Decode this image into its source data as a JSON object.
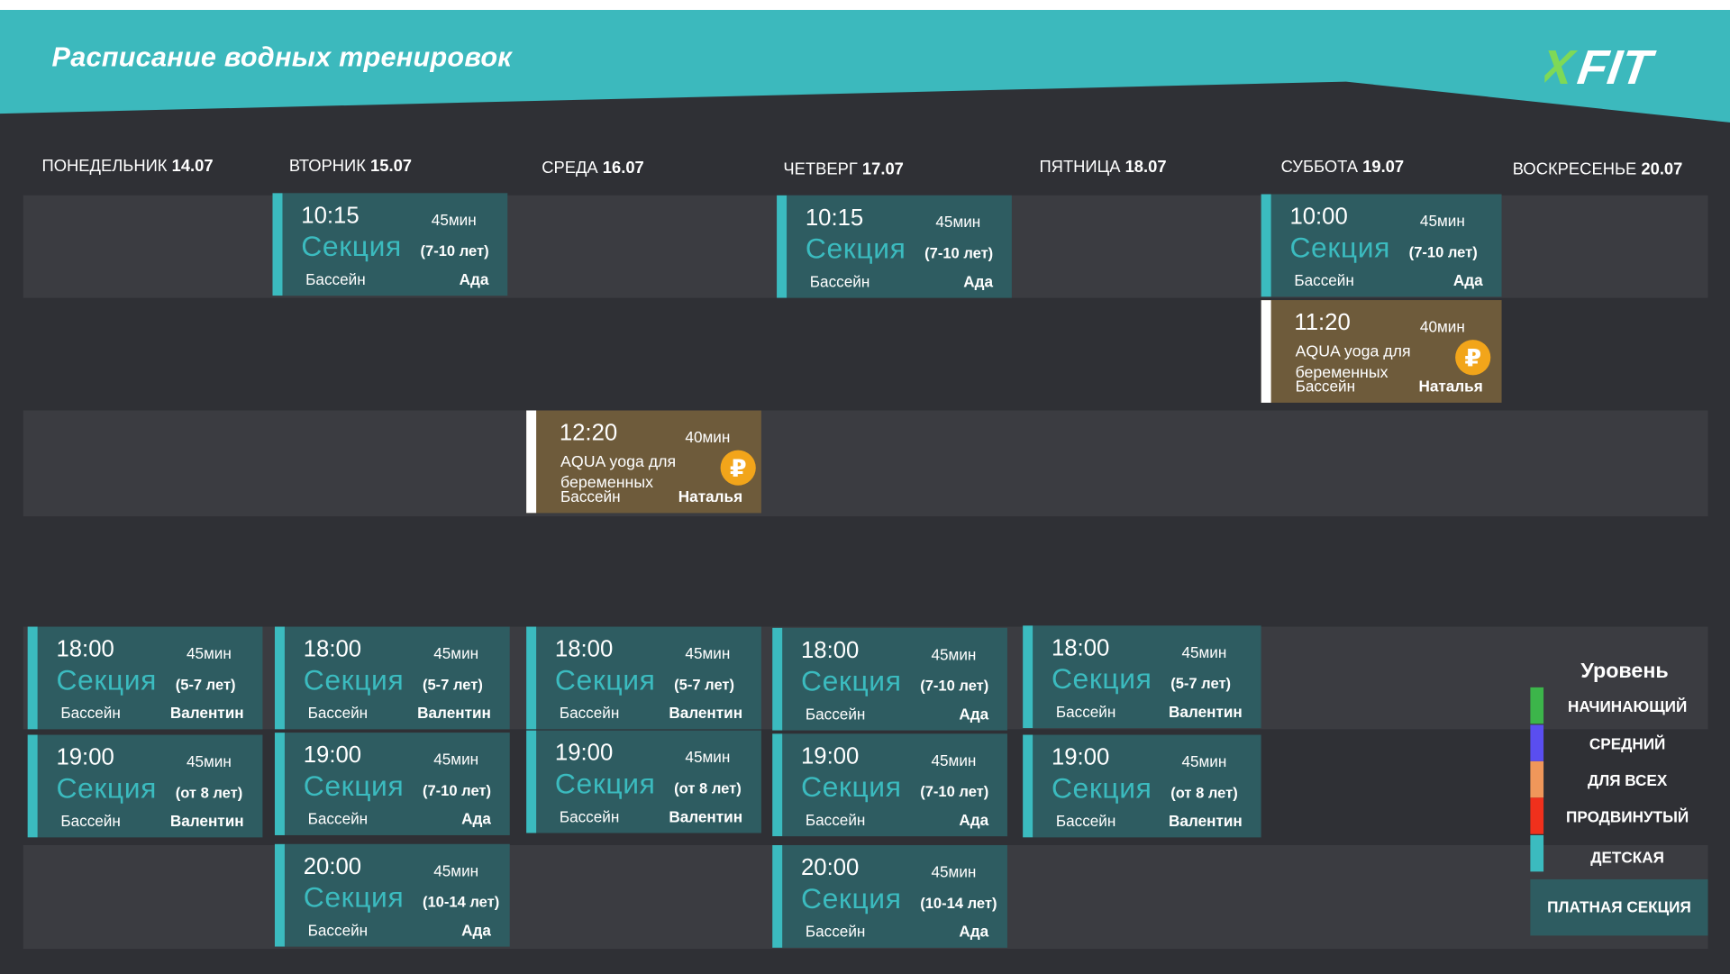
{
  "header": {
    "title": "Расписание водных тренировок",
    "logo_text": "XFIT"
  },
  "colors": {
    "accent": "#3bbbbf",
    "card": "#2e5c61",
    "paid_card": "#6e5b3b",
    "background": "#2f3035",
    "band": "#3b3c41",
    "ruble": "#f2a51a"
  },
  "days": [
    {
      "name": "ПОНЕДЕЛЬНИК",
      "date": "14.07"
    },
    {
      "name": "ВТОРНИК",
      "date": "15.07"
    },
    {
      "name": "СРЕДА",
      "date": "16.07"
    },
    {
      "name": "ЧЕТВЕРГ",
      "date": "17.07"
    },
    {
      "name": "ПЯТНИЦА",
      "date": "18.07"
    },
    {
      "name": "СУББОТА",
      "date": "19.07"
    },
    {
      "name": "ВОСКРЕСЕНЬЕ",
      "date": "20.07"
    }
  ],
  "sessions": [
    {
      "time": "10:15",
      "duration": "45мин",
      "name": "Секция",
      "age": "(7-10 лет)",
      "location": "Бассейн",
      "trainer": "Ада"
    },
    {
      "time": "10:15",
      "duration": "45мин",
      "name": "Секция",
      "age": "(7-10 лет)",
      "location": "Бассейн",
      "trainer": "Ада"
    },
    {
      "time": "10:00",
      "duration": "45мин",
      "name": "Секция",
      "age": "(7-10 лет)",
      "location": "Бассейн",
      "trainer": "Ада"
    },
    {
      "time": "11:20",
      "duration": "40мин",
      "name": "AQUA yoga для беременных",
      "age": "",
      "location": "Бассейн",
      "trainer": "Наталья",
      "paid": true,
      "price_icon": "₽"
    },
    {
      "time": "12:20",
      "duration": "40мин",
      "name": "AQUA yoga для беременных",
      "age": "",
      "location": "Бассейн",
      "trainer": "Наталья",
      "paid": true,
      "price_icon": "₽"
    },
    {
      "time": "18:00",
      "duration": "45мин",
      "name": "Секция",
      "age": "(5-7 лет)",
      "location": "Бассейн",
      "trainer": "Валентин"
    },
    {
      "time": "18:00",
      "duration": "45мин",
      "name": "Секция",
      "age": "(5-7 лет)",
      "location": "Бассейн",
      "trainer": "Валентин"
    },
    {
      "time": "18:00",
      "duration": "45мин",
      "name": "Секция",
      "age": "(5-7 лет)",
      "location": "Бассейн",
      "trainer": "Валентин"
    },
    {
      "time": "18:00",
      "duration": "45мин",
      "name": "Секция",
      "age": "(7-10 лет)",
      "location": "Бассейн",
      "trainer": "Ада"
    },
    {
      "time": "18:00",
      "duration": "45мин",
      "name": "Секция",
      "age": "(5-7 лет)",
      "location": "Бассейн",
      "trainer": "Валентин"
    },
    {
      "time": "19:00",
      "duration": "45мин",
      "name": "Секция",
      "age": "(от 8 лет)",
      "location": "Бассейн",
      "trainer": "Валентин"
    },
    {
      "time": "19:00",
      "duration": "45мин",
      "name": "Секция",
      "age": "(7-10 лет)",
      "location": "Бассейн",
      "trainer": "Ада"
    },
    {
      "time": "19:00",
      "duration": "45мин",
      "name": "Секция",
      "age": "(от 8 лет)",
      "location": "Бассейн",
      "trainer": "Валентин"
    },
    {
      "time": "19:00",
      "duration": "45мин",
      "name": "Секция",
      "age": "(7-10 лет)",
      "location": "Бассейн",
      "trainer": "Ада"
    },
    {
      "time": "19:00",
      "duration": "45мин",
      "name": "Секция",
      "age": "(от 8 лет)",
      "location": "Бассейн",
      "trainer": "Валентин"
    },
    {
      "time": "20:00",
      "duration": "45мин",
      "name": "Секция",
      "age": "(10-14 лет)",
      "location": "Бассейн",
      "trainer": "Ада"
    },
    {
      "time": "20:00",
      "duration": "45мин",
      "name": "Секция",
      "age": "(10-14 лет)",
      "location": "Бассейн",
      "trainer": "Ада"
    }
  ],
  "legend": {
    "title": "Уровень",
    "items": [
      {
        "label": "НАЧИНАЮЩИЙ",
        "color": "#3cb54a"
      },
      {
        "label": "СРЕДНИЙ",
        "color": "#5a4ef0"
      },
      {
        "label": "ДЛЯ ВСЕХ",
        "color": "#f0975a"
      },
      {
        "label": "ПРОДВИНУТЫЙ",
        "color": "#f0301c"
      },
      {
        "label": "ДЕТСКАЯ",
        "color": "#3bbbbf"
      }
    ],
    "paid_label": "ПЛАТНАЯ СЕКЦИЯ"
  }
}
